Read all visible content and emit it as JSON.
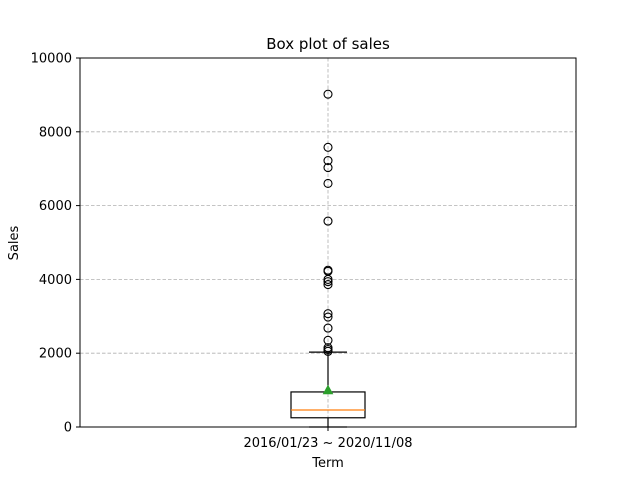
{
  "chart_data": {
    "type": "box",
    "title": "Box plot of sales",
    "xlabel": "Term",
    "ylabel": "Sales",
    "ylim": [
      0,
      10000
    ],
    "yticks": [
      0,
      2000,
      4000,
      6000,
      8000,
      10000
    ],
    "grid": true,
    "categories": [
      "2016/01/23 ~ 2020/11/08"
    ],
    "box": {
      "whisker_low": 0,
      "q1": 250,
      "median": 460,
      "q3": 950,
      "whisker_high": 2030,
      "mean": 1000
    },
    "outliers": [
      2050,
      2100,
      2150,
      2350,
      2680,
      2980,
      3070,
      3860,
      3940,
      4000,
      4220,
      4250,
      5580,
      6600,
      7030,
      7220,
      7580,
      9020
    ],
    "colors": {
      "median": "#ff7f0e",
      "mean": "#2ca02c",
      "box": "#000000",
      "grid": "#b0b0b0"
    }
  }
}
